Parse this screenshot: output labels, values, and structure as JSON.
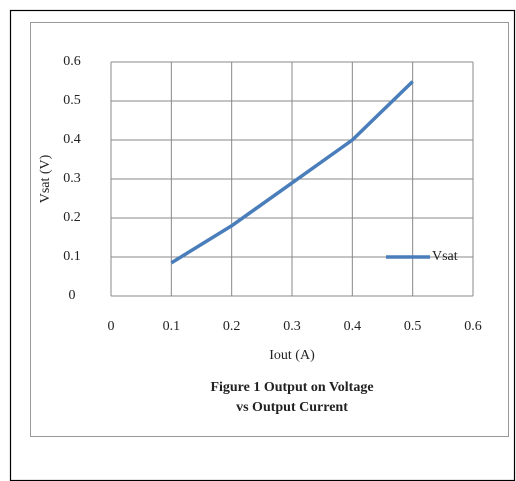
{
  "chart_data": {
    "type": "line",
    "caption": [
      "Figure 1  Output on Voltage",
      "vs Output Current"
    ],
    "xlabel": "Iout (A)",
    "ylabel": "Vsat (V)",
    "x": [
      0.1,
      0.2,
      0.3,
      0.4,
      0.5
    ],
    "series": [
      {
        "name": "Vsat",
        "color": "#4a7ebb",
        "values": [
          0.085,
          0.18,
          0.29,
          0.4,
          0.55
        ]
      }
    ],
    "xlim": [
      0,
      0.6
    ],
    "xticks": [
      0,
      0.1,
      0.2,
      0.3,
      0.4,
      0.5,
      0.6
    ],
    "ylim": [
      0,
      0.6
    ],
    "yticks": [
      0,
      0.1,
      0.2,
      0.3,
      0.4,
      0.5,
      0.6
    ],
    "grid": true,
    "legend": "right"
  }
}
